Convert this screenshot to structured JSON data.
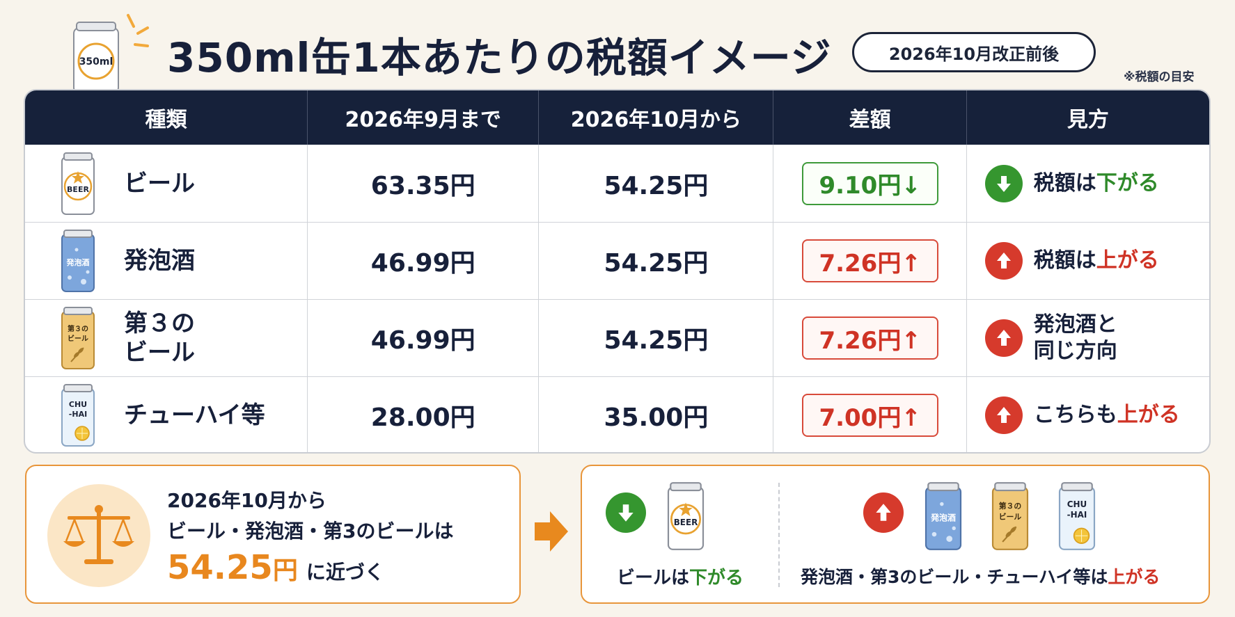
{
  "header": {
    "title": "350ml缶1本あたりの税額イメージ",
    "badge": "2026年10月改正前後",
    "note": "※税額の目安",
    "can_label": "350ml"
  },
  "table": {
    "columns": [
      "種類",
      "2026年9月まで",
      "2026年10月から",
      "差額",
      "見方"
    ],
    "rows": [
      {
        "can": "beer-can-icon",
        "can_text": "BEER",
        "type": "ビール",
        "before": "63.35円",
        "after": "54.25円",
        "diff": "9.10円↓",
        "direction": "down",
        "view_prefix": "税額は",
        "view_emph": "下がる"
      },
      {
        "can": "happoshu-can-icon",
        "can_text": "発泡酒",
        "type": "発泡酒",
        "before": "46.99円",
        "after": "54.25円",
        "diff": "7.26円↑",
        "direction": "up",
        "view_prefix": "税額は",
        "view_emph": "上がる"
      },
      {
        "can": "third-beer-can-icon",
        "can_text_1": "第３の",
        "can_text_2": "ビール",
        "type_1": "第３の",
        "type_2": "ビール",
        "before": "46.99円",
        "after": "54.25円",
        "diff": "7.26円↑",
        "direction": "up",
        "view_1": "発泡酒と",
        "view_2": "同じ方向"
      },
      {
        "can": "chuhai-can-icon",
        "can_text_1": "CHU",
        "can_text_2": "-HAI",
        "type": "チューハイ等",
        "before": "28.00円",
        "after": "35.00円",
        "diff": "7.00円↑",
        "direction": "up",
        "view_prefix": "こちらも",
        "view_emph": "上がる"
      }
    ]
  },
  "summary": {
    "line1": "2026年10月から",
    "line2": "ビール・発泡酒・第3のビールは",
    "big_value": "54.25",
    "big_unit": "円",
    "suffix": "に近づく"
  },
  "outcome": {
    "beer_can_text": "BEER",
    "happoshu_can_text": "発泡酒",
    "third_can_text_1": "第３の",
    "third_can_text_2": "ビール",
    "chuhai_can_text_1": "CHU",
    "chuhai_can_text_2": "-HAI",
    "down_prefix": "ビールは",
    "down_emph": "下がる",
    "up_prefix": "発泡酒・第3のビール・チューハイ等は",
    "up_emph": "上がる"
  },
  "colors": {
    "navy": "#16213a",
    "green": "#2f8a2a",
    "red": "#cf3325",
    "orange": "#e8871e",
    "background": "#f8f4ec"
  }
}
